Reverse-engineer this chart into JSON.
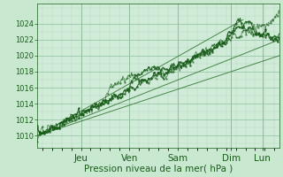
{
  "title": "Pression niveau de la mer( hPa )",
  "fig_bg_color": "#c8e8d0",
  "plot_bg_color": "#d0ecd8",
  "grid_major_color": "#90c0a0",
  "grid_minor_color": "#b0d8bc",
  "line_color_dark": "#1a5c1a",
  "line_color_thin": "#3a7a3a",
  "ylim": [
    1008.5,
    1026.5
  ],
  "yticks": [
    1010,
    1012,
    1014,
    1016,
    1018,
    1020,
    1022,
    1024
  ],
  "day_labels": [
    "Jeu",
    "Ven",
    "Sam",
    "Dim",
    "Lun"
  ],
  "day_positions": [
    0.18,
    0.38,
    0.58,
    0.8,
    0.93
  ],
  "xlabel_fontsize": 7.5,
  "tick_fontsize": 6.0
}
